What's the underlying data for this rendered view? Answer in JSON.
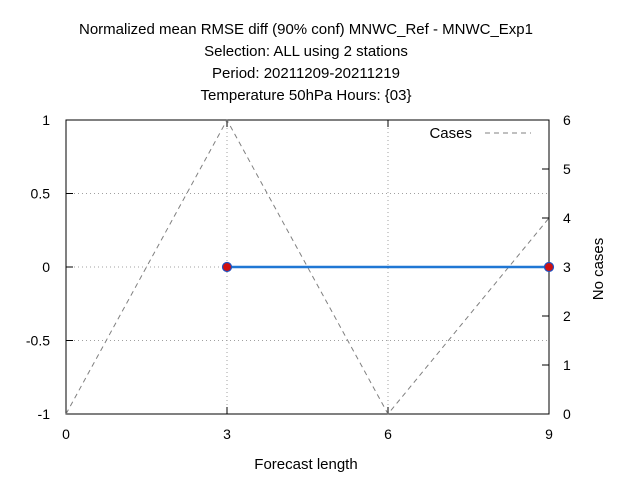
{
  "chart_data": {
    "type": "line",
    "title_lines": [
      "Normalized mean RMSE diff (90% conf) MNWC_Ref - MNWC_Exp1",
      "Selection: ALL using     2 stations",
      "Period: 20211209-20211219",
      "Temperature 50hPa   Hours: {03}"
    ],
    "xlabel": "Forecast length",
    "ylabel": "",
    "y2label": "No cases",
    "xlim": [
      0,
      9
    ],
    "ylim": [
      -1,
      1
    ],
    "y2lim": [
      0,
      6
    ],
    "xticks": [
      "0",
      "3",
      "6",
      "9"
    ],
    "yticks": [
      "-1",
      "-0.5",
      "0",
      "0.5",
      "1"
    ],
    "y2ticks": [
      "0",
      "1",
      "2",
      "3",
      "4",
      "5",
      "6"
    ],
    "grid": true,
    "legend_position": "top-right",
    "series": [
      {
        "name": "",
        "axis": "y",
        "color": "#1f77d4",
        "marker_color": "#d01010",
        "x": [
          3,
          9
        ],
        "y": [
          0,
          0
        ]
      },
      {
        "name": "Cases",
        "axis": "y2",
        "style": "dashed",
        "color": "#808080",
        "x": [
          0,
          3,
          6,
          9
        ],
        "y": [
          0,
          6,
          0,
          4
        ]
      }
    ]
  }
}
